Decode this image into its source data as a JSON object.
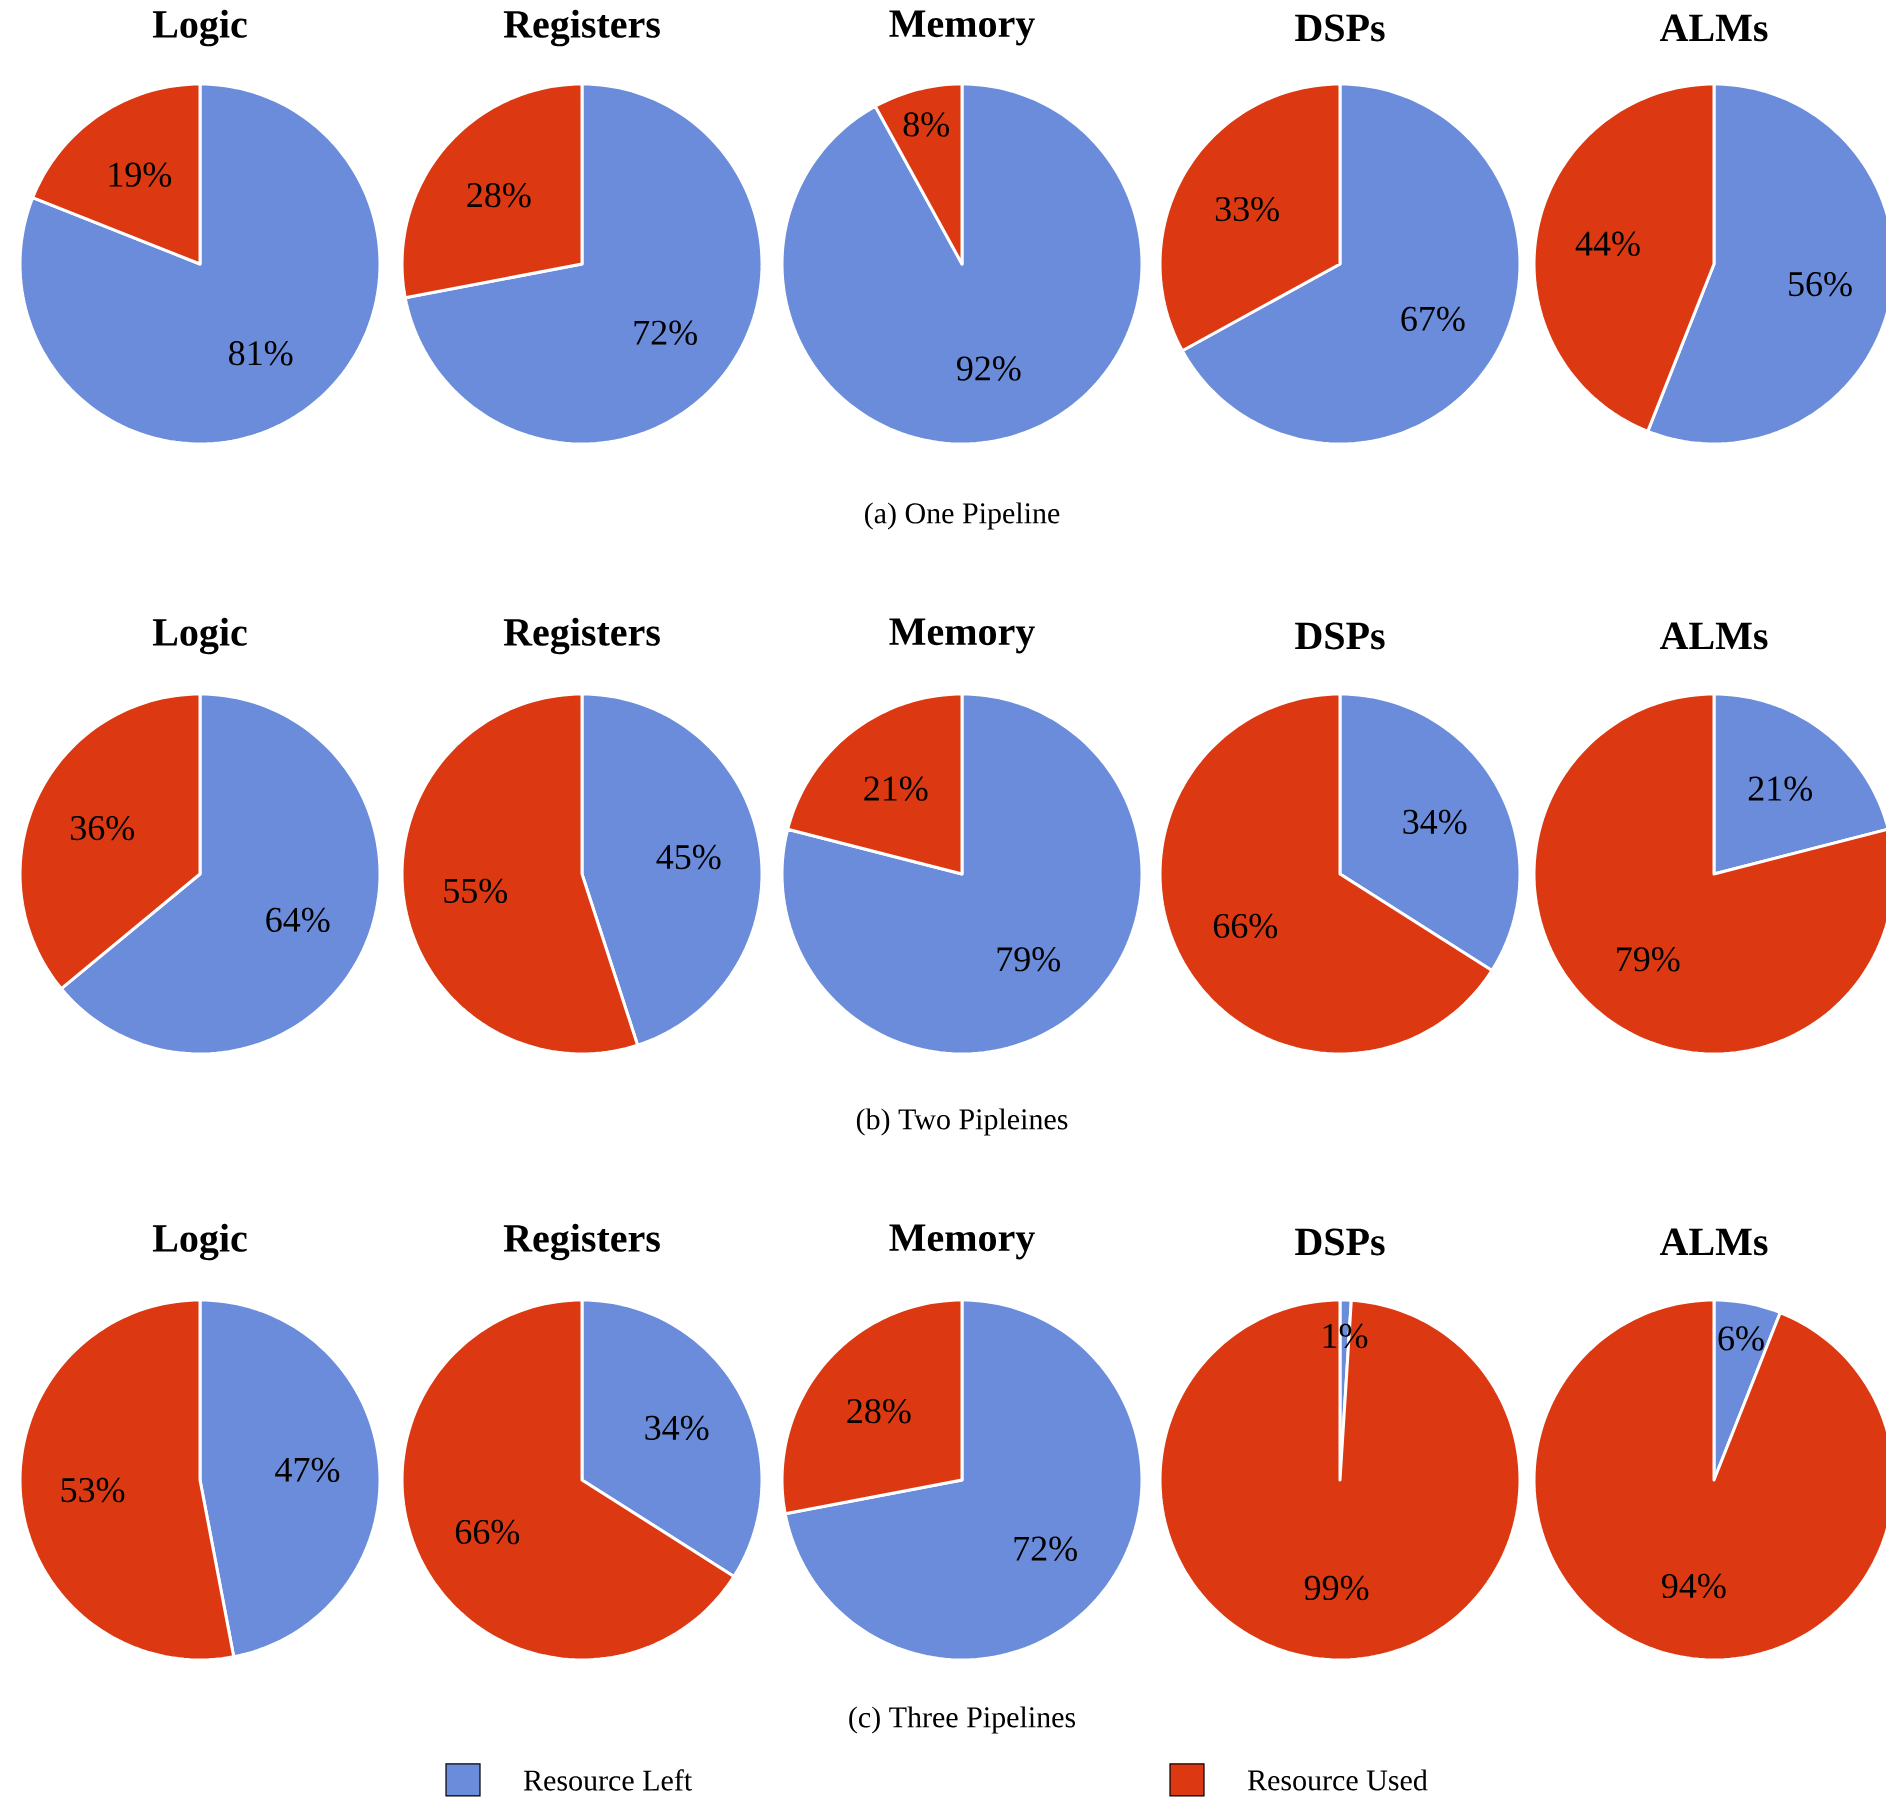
{
  "chart_data": [
    {
      "type": "pie",
      "title": "Logic",
      "categories": [
        null,
        null
      ],
      "values": [
        81,
        19
      ],
      "colors": [
        "#6a8cda",
        "#dc3912"
      ],
      "value_labels": [
        "81%",
        "19%"
      ]
    },
    {
      "type": "pie",
      "title": "Registers",
      "categories": [
        null,
        null
      ],
      "values": [
        72,
        28
      ],
      "colors": [
        "#6a8cda",
        "#dc3912"
      ],
      "value_labels": [
        "72%",
        "28%"
      ]
    },
    {
      "type": "pie",
      "title": "Memory",
      "categories": [
        null,
        null
      ],
      "values": [
        92,
        8
      ],
      "colors": [
        "#6a8cda",
        "#dc3912"
      ],
      "value_labels": [
        "92%",
        "8%"
      ],
      "annotations": [
        "(a) One Pipeline"
      ]
    },
    {
      "type": "pie",
      "title": "DSPs",
      "categories": [
        null,
        null
      ],
      "values": [
        67,
        33
      ],
      "colors": [
        "#6a8cda",
        "#dc3912"
      ],
      "value_labels": [
        "67%",
        "33%"
      ]
    },
    {
      "type": "pie",
      "title": "ALMs",
      "categories": [
        null,
        null
      ],
      "values": [
        56,
        44
      ],
      "colors": [
        "#6a8cda",
        "#dc3912"
      ],
      "value_labels": [
        "56%",
        "44%"
      ]
    },
    {
      "type": "pie",
      "title": "Logic",
      "categories": [
        null,
        null
      ],
      "values": [
        64,
        36
      ],
      "colors": [
        "#6a8cda",
        "#dc3912"
      ],
      "value_labels": [
        "64%",
        "36%"
      ]
    },
    {
      "type": "pie",
      "title": "Registers",
      "categories": [
        null,
        null
      ],
      "values": [
        45,
        55
      ],
      "colors": [
        "#6a8cda",
        "#dc3912"
      ],
      "value_labels": [
        "45%",
        "55%"
      ]
    },
    {
      "type": "pie",
      "title": "Memory",
      "categories": [
        null,
        null
      ],
      "values": [
        79,
        21
      ],
      "colors": [
        "#6a8cda",
        "#dc3912"
      ],
      "value_labels": [
        "79%",
        "21%"
      ],
      "annotations": [
        "(b) Two Pipleines"
      ]
    },
    {
      "type": "pie",
      "title": "DSPs",
      "categories": [
        null,
        null
      ],
      "values": [
        34,
        66
      ],
      "colors": [
        "#6a8cda",
        "#dc3912"
      ],
      "value_labels": [
        "34%",
        "66%"
      ]
    },
    {
      "type": "pie",
      "title": "ALMs",
      "categories": [
        null,
        null
      ],
      "values": [
        21,
        79
      ],
      "colors": [
        "#6a8cda",
        "#dc3912"
      ],
      "value_labels": [
        "21%",
        "79%"
      ]
    },
    {
      "type": "pie",
      "title": "Logic",
      "categories": [
        null,
        null
      ],
      "values": [
        47,
        53
      ],
      "colors": [
        "#6a8cda",
        "#dc3912"
      ],
      "value_labels": [
        "47%",
        "53%"
      ]
    },
    {
      "type": "pie",
      "title": "Registers",
      "categories": [
        null,
        null
      ],
      "values": [
        34,
        66
      ],
      "colors": [
        "#6a8cda",
        "#dc3912"
      ],
      "value_labels": [
        "34%",
        "66%"
      ]
    },
    {
      "type": "pie",
      "title": "Memory",
      "categories": [
        "Resource Left",
        "Resource Used"
      ],
      "values": [
        72,
        28
      ],
      "colors": [
        "#6a8cda",
        "#dc3912"
      ],
      "value_labels": [
        "72%",
        "28%"
      ],
      "annotations": [
        "(c) Three Pipelines"
      ],
      "legend": "bottom"
    },
    {
      "type": "pie",
      "title": "DSPs",
      "categories": [
        null,
        null
      ],
      "values": [
        1,
        99
      ],
      "colors": [
        "#6a8cda",
        "#dc3912"
      ],
      "value_labels": [
        "1%",
        "99%"
      ]
    },
    {
      "type": "pie",
      "title": "ALMs",
      "categories": [
        null,
        null
      ],
      "values": [
        6,
        94
      ],
      "colors": [
        "#6a8cda",
        "#dc3912"
      ],
      "value_labels": [
        "6%",
        "94%"
      ]
    }
  ]
}
